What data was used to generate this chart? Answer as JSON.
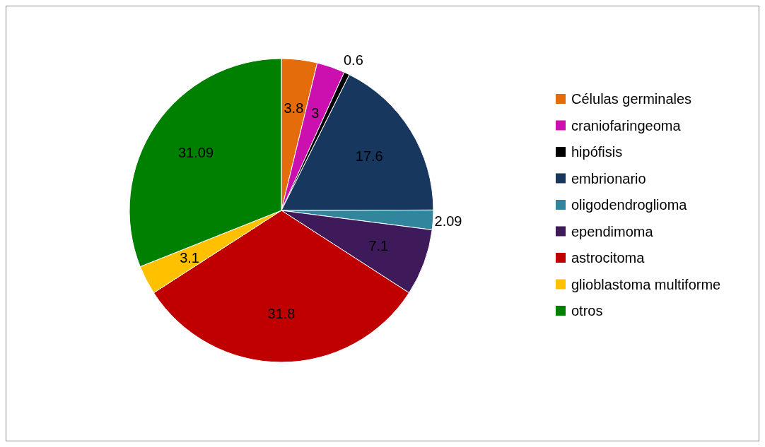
{
  "chart_data": {
    "type": "pie",
    "categories": [
      "Células germinales",
      "craniofaringeoma",
      "hipófisis",
      "embrionario",
      "oligodendroglioma",
      "ependimoma",
      "astrocitoma",
      "glioblastoma multiforme",
      "otros"
    ],
    "values": [
      3.8,
      3,
      0.6,
      17.6,
      2.09,
      7.1,
      31.8,
      3.1,
      31.09
    ],
    "colors": [
      "#e46c0a",
      "#cc10b0",
      "#000000",
      "#17375e",
      "#31859c",
      "#3f1a5a",
      "#c00000",
      "#ffc000",
      "#008000"
    ],
    "data_labels": true,
    "legend": "right"
  }
}
